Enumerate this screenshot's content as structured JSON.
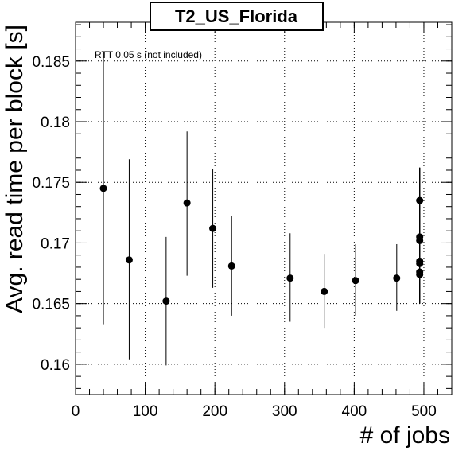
{
  "chart_data": {
    "type": "scatter",
    "title": "T2_US_Florida",
    "xlabel": "# of jobs",
    "ylabel": "Avg. read time per block [s]",
    "annotation": "RTT 0.05 s (not included)",
    "xlim": [
      0,
      540
    ],
    "ylim": [
      0.1575,
      0.1882
    ],
    "x_ticks": [
      0,
      100,
      200,
      300,
      400,
      500
    ],
    "x_tick_labels": [
      "0",
      "100",
      "200",
      "300",
      "400",
      "500"
    ],
    "y_ticks": [
      0.16,
      0.165,
      0.17,
      0.175,
      0.18,
      0.185
    ],
    "y_tick_labels": [
      "0.16",
      "0.165",
      "0.17",
      "0.175",
      "0.18",
      "0.185"
    ],
    "grid": true,
    "series": [
      {
        "points": [
          {
            "x": 40,
            "y": 0.1745,
            "ylow": 0.1633,
            "yhigh": 0.1858
          },
          {
            "x": 77,
            "y": 0.1686,
            "ylow": 0.1604,
            "yhigh": 0.1769
          },
          {
            "x": 130,
            "y": 0.1652,
            "ylow": 0.1599,
            "yhigh": 0.1705
          },
          {
            "x": 160,
            "y": 0.1733,
            "ylow": 0.1673,
            "yhigh": 0.1792
          },
          {
            "x": 197,
            "y": 0.1712,
            "ylow": 0.1663,
            "yhigh": 0.1761
          },
          {
            "x": 224,
            "y": 0.1681,
            "ylow": 0.164,
            "yhigh": 0.1722
          },
          {
            "x": 308,
            "y": 0.1671,
            "ylow": 0.1635,
            "yhigh": 0.1708
          },
          {
            "x": 357,
            "y": 0.166,
            "ylow": 0.163,
            "yhigh": 0.1691
          },
          {
            "x": 402,
            "y": 0.1669,
            "ylow": 0.164,
            "yhigh": 0.1699
          },
          {
            "x": 461,
            "y": 0.1671,
            "ylow": 0.1644,
            "yhigh": 0.1699
          },
          {
            "x": 494,
            "y": 0.1735,
            "ylow": 0.165,
            "yhigh": 0.1762
          },
          {
            "x": 494,
            "y": 0.1705,
            "ylow": 0.165,
            "yhigh": 0.1762
          },
          {
            "x": 494,
            "y": 0.1702,
            "ylow": 0.165,
            "yhigh": 0.1762
          },
          {
            "x": 494,
            "y": 0.1685,
            "ylow": 0.165,
            "yhigh": 0.1762
          },
          {
            "x": 494,
            "y": 0.1683,
            "ylow": 0.165,
            "yhigh": 0.1762
          },
          {
            "x": 494,
            "y": 0.1676,
            "ylow": 0.165,
            "yhigh": 0.1762
          },
          {
            "x": 494,
            "y": 0.1674,
            "ylow": 0.165,
            "yhigh": 0.1762
          }
        ]
      }
    ]
  }
}
